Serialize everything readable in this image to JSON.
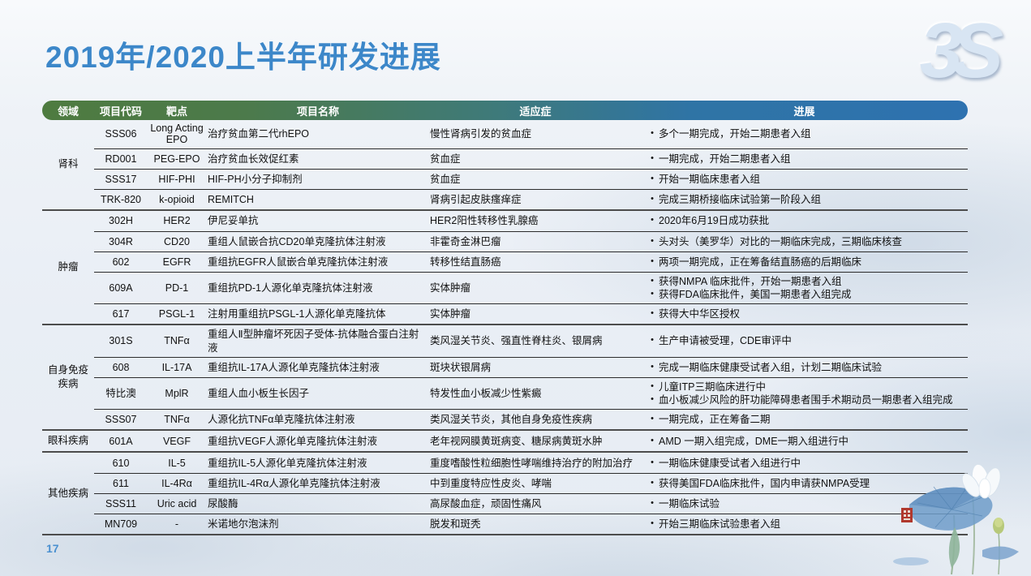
{
  "page": {
    "title": "2019年/2020上半年研发进展",
    "logo": "3S",
    "page_number": "17"
  },
  "colors": {
    "title_blue": "#3c87c9",
    "header_gradient_start": "#4e7b40",
    "header_gradient_end": "#2e72b0",
    "page_number_blue": "#4a90d0",
    "seal_red": "#b0392e"
  },
  "icons": {
    "logo": "3s-logo",
    "decoration": "lotus-watercolor-painting",
    "seal": "red-seal-stamp"
  },
  "table": {
    "headers": [
      "领域",
      "项目代码",
      "靶点",
      "项目名称",
      "适应症",
      "进展"
    ],
    "groups": [
      {
        "field": "肾科",
        "rows": [
          {
            "code": "SSS06",
            "target": "Long Acting EPO",
            "name": "治疗贫血第二代rhEPO",
            "indication": "慢性肾病引发的贫血症",
            "progress": [
              "多个一期完成，开始二期患者入组"
            ]
          },
          {
            "code": "RD001",
            "target": "PEG-EPO",
            "name": "治疗贫血长效促红素",
            "indication": "贫血症",
            "progress": [
              "一期完成，开始二期患者入组"
            ]
          },
          {
            "code": "SSS17",
            "target": "HIF-PHI",
            "name": "HIF-PH小分子抑制剂",
            "indication": "贫血症",
            "progress": [
              "开始一期临床患者入组"
            ]
          },
          {
            "code": "TRK-820",
            "target": "k-opioid",
            "name": "REMITCH",
            "indication": "肾病引起皮肤瘙痒症",
            "progress": [
              "完成三期桥接临床试验第一阶段入组"
            ]
          }
        ]
      },
      {
        "field": "肿瘤",
        "rows": [
          {
            "code": "302H",
            "target": "HER2",
            "name": "伊尼妥单抗",
            "indication": "HER2阳性转移性乳腺癌",
            "progress": [
              "2020年6月19日成功获批"
            ]
          },
          {
            "code": "304R",
            "target": "CD20",
            "name": "重组人鼠嵌合抗CD20单克隆抗体注射液",
            "indication": "非霍奇金淋巴瘤",
            "progress": [
              "头对头（美罗华）对比的一期临床完成，三期临床核查"
            ]
          },
          {
            "code": "602",
            "target": "EGFR",
            "name": "重组抗EGFR人鼠嵌合单克隆抗体注射液",
            "indication": "转移性结直肠癌",
            "progress": [
              "两项一期完成，正在筹备结直肠癌的后期临床"
            ]
          },
          {
            "code": "609A",
            "target": "PD-1",
            "name": "重组抗PD-1人源化单克隆抗体注射液",
            "indication": "实体肿瘤",
            "progress": [
              "获得NMPA 临床批件，开始一期患者入组",
              "获得FDA临床批件，美国一期患者入组完成"
            ]
          },
          {
            "code": "617",
            "target": "PSGL-1",
            "name": "注射用重组抗PSGL-1人源化单克隆抗体",
            "indication": "实体肿瘤",
            "progress": [
              "获得大中华区授权"
            ]
          }
        ]
      },
      {
        "field": "自身免疫 疾病",
        "rows": [
          {
            "code": "301S",
            "target": "TNFα",
            "name": "重组人Ⅱ型肿瘤坏死因子受体-抗体融合蛋白注射液",
            "indication": "类风湿关节炎、强直性脊柱炎、银屑病",
            "progress": [
              "生产申请被受理，CDE审评中"
            ]
          },
          {
            "code": "608",
            "target": "IL-17A",
            "name": "重组抗IL-17A人源化单克隆抗体注射液",
            "indication": "斑块状银屑病",
            "progress": [
              "完成一期临床健康受试者入组，计划二期临床试验"
            ]
          },
          {
            "code": "特比澳",
            "target": "MplR",
            "name": "重组人血小板生长因子",
            "indication": "特发性血小板减少性紫癜",
            "progress": [
              "儿童ITP三期临床进行中",
              "血小板减少风险的肝功能障碍患者围手术期动员一期患者入组完成"
            ]
          },
          {
            "code": "SSS07",
            "target": "TNFα",
            "name": "人源化抗TNFα单克隆抗体注射液",
            "indication": "类风湿关节炎，其他自身免疫性疾病",
            "progress": [
              "一期完成，正在筹备二期"
            ]
          }
        ]
      },
      {
        "field": "眼科疾病",
        "rows": [
          {
            "code": "601A",
            "target": "VEGF",
            "name": "重组抗VEGF人源化单克隆抗体注射液",
            "indication": "老年视网膜黄斑病变、糖尿病黄斑水肿",
            "progress": [
              "AMD 一期入组完成，DME一期入组进行中"
            ]
          }
        ]
      },
      {
        "field": "其他疾病",
        "rows": [
          {
            "code": "610",
            "target": "IL-5",
            "name": "重组抗IL-5人源化单克隆抗体注射液",
            "indication": "重度嗜酸性粒细胞性哮喘维持治疗的附加治疗",
            "progress": [
              "一期临床健康受试者入组进行中"
            ]
          },
          {
            "code": "611",
            "target": "IL-4Rα",
            "name": "重组抗IL-4Rα人源化单克隆抗体注射液",
            "indication": "中到重度特应性皮炎、哮喘",
            "progress": [
              "获得美国FDA临床批件，国内申请获NMPA受理"
            ]
          },
          {
            "code": "SSS11",
            "target": "Uric acid",
            "name": "尿酸酶",
            "indication": "高尿酸血症，顽固性痛风",
            "progress": [
              "一期临床试验"
            ]
          },
          {
            "code": "MN709",
            "target": "-",
            "name": "米诺地尔泡沫剂",
            "indication": "脱发和斑秃",
            "progress": [
              "开始三期临床试验患者入组"
            ]
          }
        ]
      }
    ]
  }
}
